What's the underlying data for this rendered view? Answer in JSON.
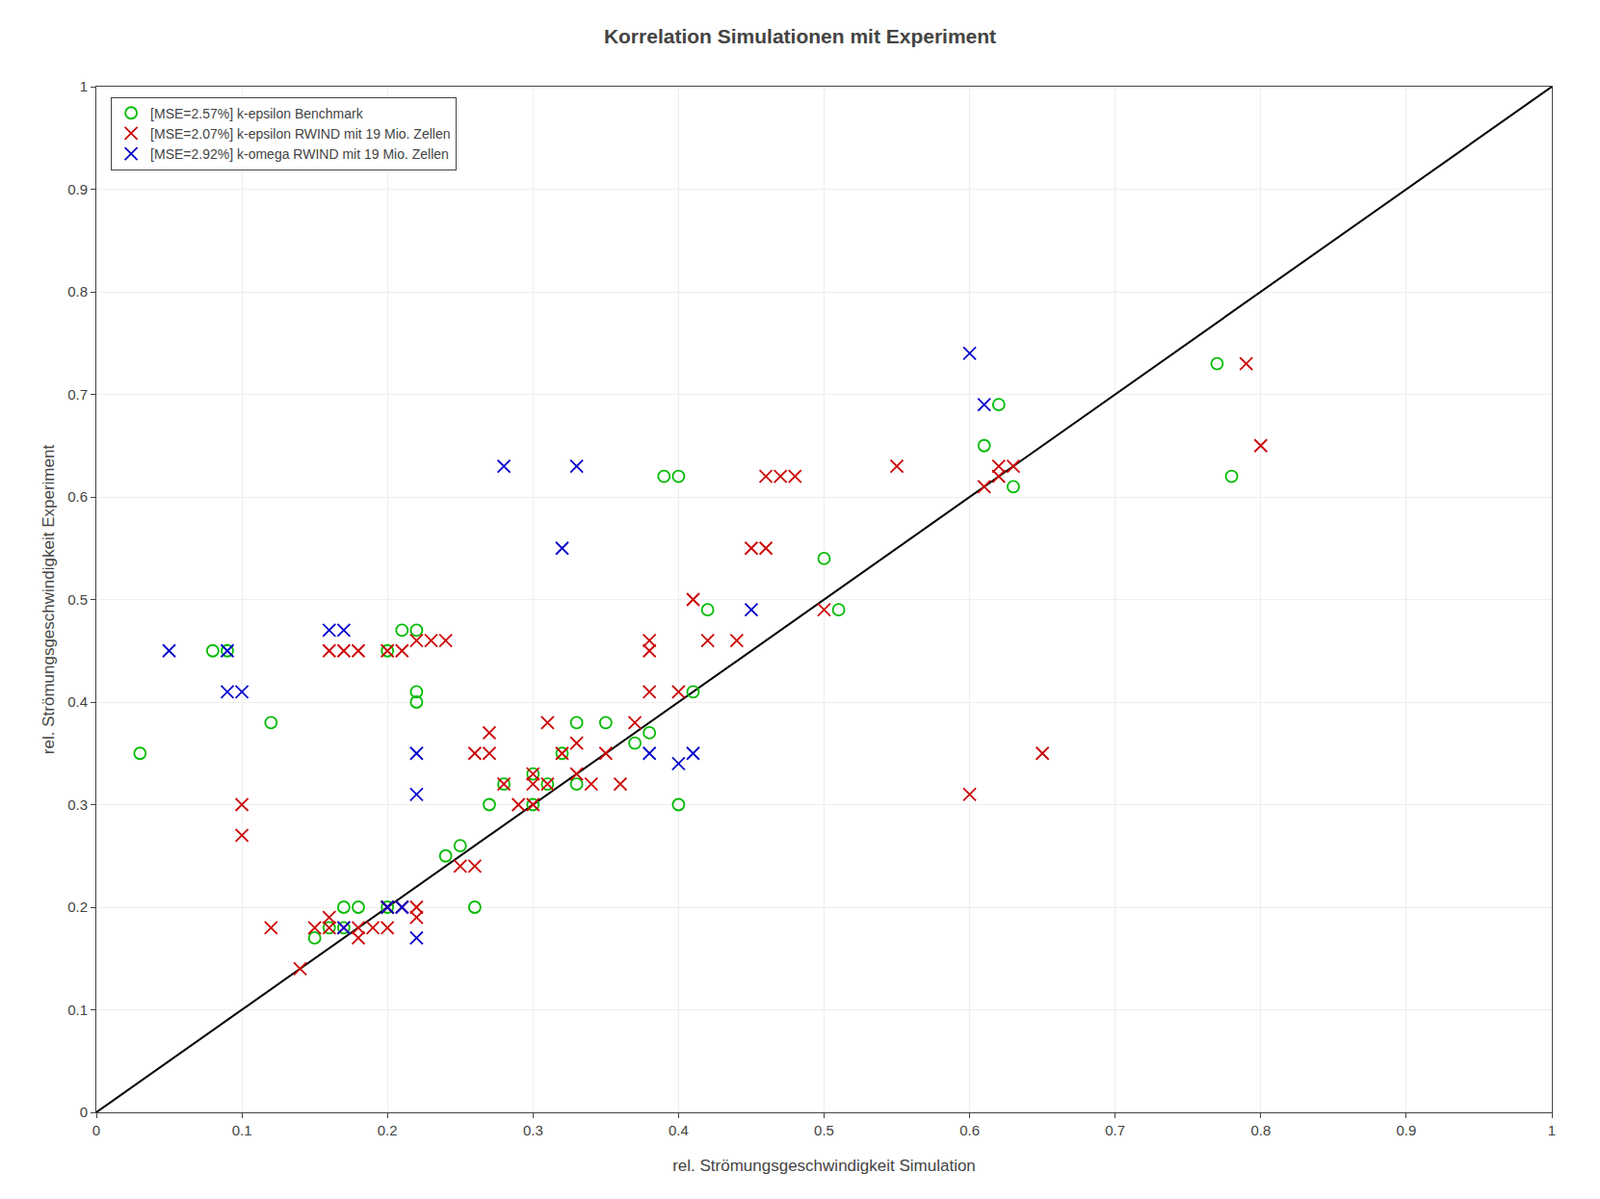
{
  "chart_data": {
    "type": "scatter",
    "title": "Korrelation Simulationen mit Experiment",
    "xlabel": "rel. Strömungsgeschwindigkeit Simulation",
    "ylabel": "rel. Strömungsgeschwindigkeit Experiment",
    "xlim": [
      0,
      1
    ],
    "ylim": [
      0,
      1
    ],
    "xticks": [
      0,
      0.1,
      0.2,
      0.3,
      0.4,
      0.5,
      0.6,
      0.7,
      0.8,
      0.9,
      1
    ],
    "yticks": [
      0,
      0.1,
      0.2,
      0.3,
      0.4,
      0.5,
      0.6,
      0.7,
      0.8,
      0.9,
      1
    ],
    "grid": true,
    "legend": "upper left",
    "series": [
      {
        "type": "line",
        "color": "#000000",
        "line_style": "solid",
        "x": [
          0,
          1
        ],
        "values": [
          0,
          1
        ]
      },
      {
        "name": "[MSE=2.57%] k-epsilon Benchmark",
        "type": "scatter",
        "color": "#00bb00",
        "marker": "circle-open",
        "x": [
          0.03,
          0.08,
          0.09,
          0.12,
          0.15,
          0.16,
          0.17,
          0.17,
          0.18,
          0.2,
          0.2,
          0.21,
          0.22,
          0.22,
          0.22,
          0.24,
          0.25,
          0.26,
          0.27,
          0.28,
          0.3,
          0.3,
          0.31,
          0.32,
          0.33,
          0.33,
          0.35,
          0.37,
          0.38,
          0.39,
          0.4,
          0.4,
          0.41,
          0.42,
          0.5,
          0.51,
          0.61,
          0.62,
          0.63,
          0.77,
          0.78
        ],
        "values": [
          0.35,
          0.45,
          0.45,
          0.38,
          0.17,
          0.18,
          0.18,
          0.2,
          0.2,
          0.2,
          0.45,
          0.47,
          0.47,
          0.4,
          0.41,
          0.25,
          0.26,
          0.2,
          0.3,
          0.32,
          0.3,
          0.33,
          0.32,
          0.35,
          0.32,
          0.38,
          0.38,
          0.36,
          0.37,
          0.62,
          0.62,
          0.3,
          0.41,
          0.49,
          0.54,
          0.49,
          0.65,
          0.69,
          0.61,
          0.73,
          0.62
        ]
      },
      {
        "name": "[MSE=2.07%] k-epsilon RWIND mit 19 Mio. Zellen",
        "type": "scatter",
        "color": "#cc0000",
        "marker": "x",
        "x": [
          0.1,
          0.1,
          0.12,
          0.14,
          0.15,
          0.16,
          0.16,
          0.16,
          0.17,
          0.17,
          0.18,
          0.18,
          0.18,
          0.19,
          0.2,
          0.2,
          0.2,
          0.2,
          0.21,
          0.21,
          0.22,
          0.22,
          0.22,
          0.23,
          0.24,
          0.25,
          0.26,
          0.26,
          0.27,
          0.27,
          0.28,
          0.29,
          0.3,
          0.3,
          0.3,
          0.31,
          0.31,
          0.32,
          0.33,
          0.33,
          0.34,
          0.35,
          0.36,
          0.37,
          0.38,
          0.38,
          0.38,
          0.4,
          0.41,
          0.42,
          0.44,
          0.45,
          0.46,
          0.46,
          0.47,
          0.48,
          0.5,
          0.55,
          0.6,
          0.61,
          0.62,
          0.62,
          0.63,
          0.65,
          0.79,
          0.8
        ],
        "values": [
          0.27,
          0.3,
          0.18,
          0.14,
          0.18,
          0.18,
          0.19,
          0.45,
          0.18,
          0.45,
          0.17,
          0.18,
          0.45,
          0.18,
          0.18,
          0.2,
          0.2,
          0.45,
          0.2,
          0.45,
          0.19,
          0.2,
          0.46,
          0.46,
          0.46,
          0.24,
          0.24,
          0.35,
          0.35,
          0.37,
          0.32,
          0.3,
          0.3,
          0.33,
          0.32,
          0.32,
          0.38,
          0.35,
          0.33,
          0.36,
          0.32,
          0.35,
          0.32,
          0.38,
          0.41,
          0.45,
          0.46,
          0.41,
          0.5,
          0.46,
          0.46,
          0.55,
          0.55,
          0.62,
          0.62,
          0.62,
          0.49,
          0.63,
          0.31,
          0.61,
          0.62,
          0.63,
          0.63,
          0.35,
          0.73,
          0.65
        ]
      },
      {
        "name": "[MSE=2.92%] k-omega RWIND mit 19 Mio. Zellen",
        "type": "scatter",
        "color": "#0000cc",
        "marker": "x",
        "x": [
          0.05,
          0.09,
          0.09,
          0.1,
          0.16,
          0.17,
          0.17,
          0.2,
          0.21,
          0.22,
          0.22,
          0.22,
          0.28,
          0.32,
          0.33,
          0.38,
          0.4,
          0.41,
          0.45,
          0.6,
          0.61
        ],
        "values": [
          0.45,
          0.45,
          0.41,
          0.41,
          0.47,
          0.47,
          0.18,
          0.2,
          0.2,
          0.35,
          0.31,
          0.17,
          0.63,
          0.55,
          0.63,
          0.35,
          0.34,
          0.35,
          0.49,
          0.74,
          0.69
        ]
      }
    ]
  }
}
